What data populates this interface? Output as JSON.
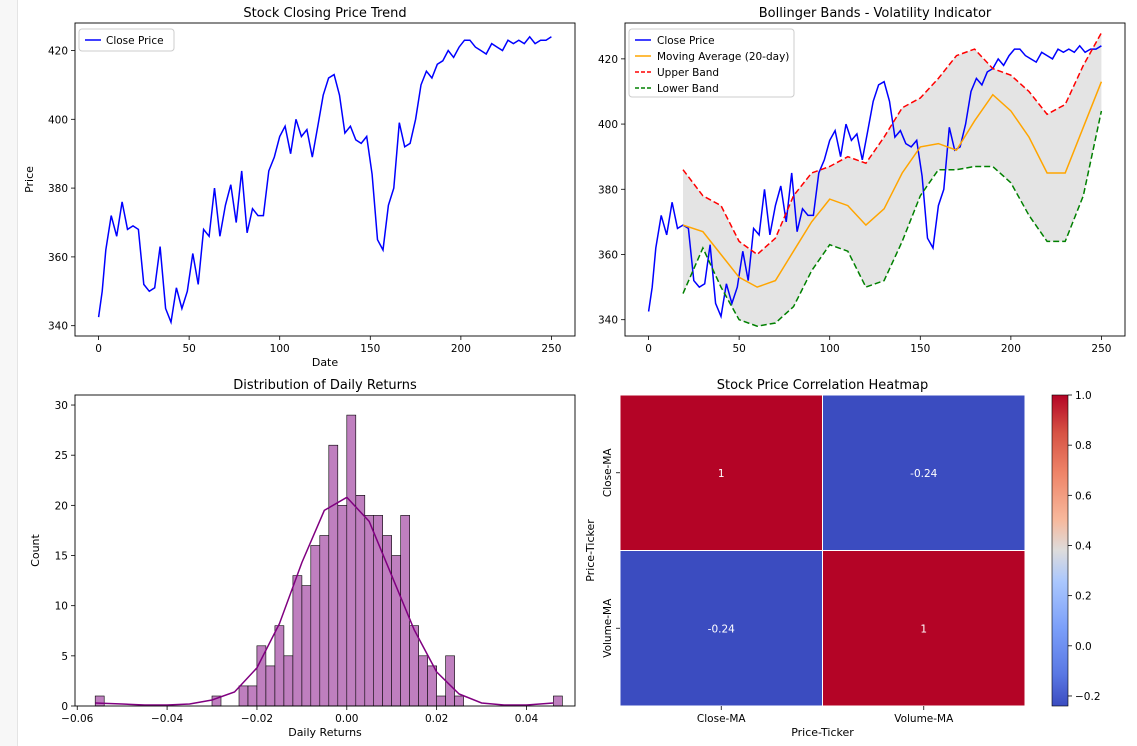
{
  "chart_data": [
    {
      "type": "line",
      "title": "Stock Closing Price Trend",
      "xlabel": "Date",
      "ylabel": "Price",
      "xlim": [
        -13,
        263
      ],
      "ylim": [
        337,
        428
      ],
      "xticks": [
        0,
        50,
        100,
        150,
        200,
        250
      ],
      "yticks": [
        340,
        360,
        380,
        400,
        420
      ],
      "grid": false,
      "legend_position": "upper left",
      "colors": {
        "close": "#0000ff"
      },
      "series": [
        {
          "name": "Close Price",
          "x": [
            0,
            2,
            4,
            7,
            10,
            13,
            16,
            19,
            22,
            25,
            28,
            31,
            34,
            37,
            40,
            43,
            46,
            49,
            52,
            55,
            58,
            61,
            64,
            67,
            70,
            73,
            76,
            79,
            82,
            85,
            88,
            91,
            94,
            97,
            100,
            103,
            106,
            109,
            112,
            115,
            118,
            121,
            124,
            127,
            130,
            133,
            136,
            139,
            142,
            145,
            148,
            151,
            154,
            157,
            160,
            163,
            166,
            169,
            172,
            175,
            178,
            181,
            184,
            187,
            190,
            193,
            196,
            199,
            202,
            205,
            208,
            211,
            214,
            217,
            220,
            223,
            226,
            229,
            232,
            235,
            238,
            241,
            244,
            247,
            250
          ],
          "values": [
            342.5,
            350,
            362,
            372,
            366,
            376,
            368,
            369,
            368,
            352,
            350,
            351,
            363,
            345,
            341,
            351,
            345,
            350,
            361,
            352,
            368,
            366,
            380,
            366,
            375,
            381,
            370,
            385,
            367,
            374,
            372,
            372,
            385,
            389,
            395,
            398,
            390,
            400,
            395,
            397,
            389,
            398,
            407,
            412,
            413,
            407,
            396,
            398,
            394,
            393,
            395,
            384,
            365,
            362,
            375,
            380,
            399,
            392,
            393,
            400,
            410,
            414,
            412,
            416,
            417,
            420,
            418,
            421,
            423,
            423,
            421,
            420,
            419,
            422,
            421,
            420,
            423,
            422,
            423,
            422,
            424,
            422,
            423,
            423,
            424
          ]
        }
      ]
    },
    {
      "type": "line",
      "title": "Bollinger Bands - Volatility Indicator",
      "xlabel": "",
      "ylabel": "",
      "xlim": [
        -13,
        263
      ],
      "ylim": [
        335,
        431
      ],
      "xticks": [
        0,
        50,
        100,
        150,
        200,
        250
      ],
      "yticks": [
        340,
        360,
        380,
        400,
        420
      ],
      "grid": false,
      "legend_position": "upper left",
      "fill_between": {
        "between": [
          "Upper Band",
          "Lower Band"
        ],
        "color": "#e4e4e4"
      },
      "series": [
        {
          "name": "Close Price",
          "color": "#0000ff",
          "style": "solid",
          "x": [
            0,
            2,
            4,
            7,
            10,
            13,
            16,
            19,
            22,
            25,
            28,
            31,
            34,
            37,
            40,
            43,
            46,
            49,
            52,
            55,
            58,
            61,
            64,
            67,
            70,
            73,
            76,
            79,
            82,
            85,
            88,
            91,
            94,
            97,
            100,
            103,
            106,
            109,
            112,
            115,
            118,
            121,
            124,
            127,
            130,
            133,
            136,
            139,
            142,
            145,
            148,
            151,
            154,
            157,
            160,
            163,
            166,
            169,
            172,
            175,
            178,
            181,
            184,
            187,
            190,
            193,
            196,
            199,
            202,
            205,
            208,
            211,
            214,
            217,
            220,
            223,
            226,
            229,
            232,
            235,
            238,
            241,
            244,
            247,
            250
          ],
          "values": [
            342.5,
            350,
            362,
            372,
            366,
            376,
            368,
            369,
            368,
            352,
            350,
            351,
            363,
            345,
            341,
            351,
            345,
            350,
            361,
            352,
            368,
            366,
            380,
            366,
            375,
            381,
            370,
            385,
            367,
            374,
            372,
            372,
            385,
            389,
            395,
            398,
            390,
            400,
            395,
            397,
            389,
            398,
            407,
            412,
            413,
            407,
            396,
            398,
            394,
            393,
            395,
            384,
            365,
            362,
            375,
            380,
            399,
            392,
            393,
            400,
            410,
            414,
            412,
            416,
            417,
            420,
            418,
            421,
            423,
            423,
            421,
            420,
            419,
            422,
            421,
            420,
            423,
            422,
            423,
            422,
            424,
            422,
            423,
            423,
            424
          ]
        },
        {
          "name": "Moving Average (20-day)",
          "color": "#ffa500",
          "style": "solid",
          "x": [
            19,
            30,
            40,
            50,
            60,
            70,
            80,
            90,
            100,
            110,
            120,
            130,
            140,
            150,
            160,
            170,
            180,
            190,
            200,
            210,
            220,
            230,
            240,
            250
          ],
          "values": [
            369,
            367,
            360,
            353,
            350,
            352,
            361,
            370,
            377,
            375,
            369,
            374,
            385,
            393,
            394,
            392,
            401,
            409,
            404,
            396,
            385,
            385,
            399,
            413
          ]
        },
        {
          "name": "Upper Band",
          "color": "#ff0000",
          "style": "dashed",
          "x": [
            19,
            30,
            40,
            50,
            60,
            70,
            80,
            90,
            100,
            110,
            120,
            130,
            140,
            150,
            160,
            170,
            180,
            190,
            200,
            210,
            220,
            230,
            240,
            250
          ],
          "values": [
            386,
            378,
            375,
            364,
            360,
            365,
            378,
            385,
            387,
            390,
            388,
            396,
            405,
            408,
            414,
            421,
            423,
            417,
            415,
            410,
            403,
            406,
            418,
            428
          ]
        },
        {
          "name": "Lower Band",
          "color": "#008000",
          "style": "dashed",
          "x": [
            19,
            30,
            40,
            50,
            60,
            70,
            80,
            90,
            100,
            110,
            120,
            130,
            140,
            150,
            160,
            170,
            180,
            190,
            200,
            210,
            220,
            230,
            240,
            250
          ],
          "values": [
            348,
            362,
            350,
            340,
            338,
            339,
            344,
            355,
            363,
            361,
            350,
            352,
            364,
            378,
            386,
            386,
            387,
            387,
            382,
            372,
            364,
            364,
            378,
            404
          ]
        }
      ]
    },
    {
      "type": "bar",
      "title": "Distribution of Daily Returns",
      "xlabel": "Daily Returns",
      "ylabel": "Count",
      "xlim": [
        -0.0605,
        0.0508
      ],
      "ylim": [
        0,
        31
      ],
      "xticks": [
        -0.06,
        -0.04,
        -0.02,
        0.0,
        0.02,
        0.04
      ],
      "xtick_labels": [
        "−0.06",
        "−0.04",
        "−0.02",
        "0.00",
        "0.02",
        "0.04"
      ],
      "yticks": [
        0,
        5,
        10,
        15,
        20,
        25,
        30
      ],
      "grid": false,
      "colors": {
        "bar_fill": "#bf7fbf",
        "bar_edge": "#000000",
        "kde": "#800080"
      },
      "bin_width": 0.002,
      "bin_starts": [
        -0.056,
        -0.03,
        -0.024,
        -0.022,
        -0.02,
        -0.018,
        -0.016,
        -0.014,
        -0.012,
        -0.01,
        -0.008,
        -0.006,
        -0.004,
        -0.002,
        0.0,
        0.002,
        0.004,
        0.006,
        0.008,
        0.01,
        0.012,
        0.014,
        0.016,
        0.018,
        0.02,
        0.022,
        0.024,
        0.046
      ],
      "counts": [
        1,
        1,
        2,
        2,
        6,
        4,
        8,
        5,
        13,
        12,
        16,
        17,
        26,
        20,
        29,
        21,
        19,
        19,
        17,
        15,
        19,
        8,
        5,
        4,
        1,
        5,
        1,
        1
      ],
      "kde": {
        "x": [
          -0.056,
          -0.05,
          -0.045,
          -0.04,
          -0.035,
          -0.03,
          -0.025,
          -0.02,
          -0.015,
          -0.01,
          -0.005,
          0.0,
          0.005,
          0.01,
          0.015,
          0.02,
          0.025,
          0.03,
          0.035,
          0.04,
          0.046
        ],
        "values": [
          0.3,
          0.2,
          0.1,
          0.1,
          0.2,
          0.6,
          1.4,
          3.8,
          8.2,
          14.3,
          19.5,
          20.8,
          18.4,
          13.0,
          7.6,
          3.4,
          1.2,
          0.3,
          0.1,
          0.1,
          0.3
        ]
      }
    },
    {
      "type": "heatmap",
      "title": "Stock Price Correlation Heatmap",
      "xlabel": "Price-Ticker",
      "ylabel": "Price-Ticker",
      "x_categories": [
        "Close-MA",
        "Volume-MA"
      ],
      "y_categories": [
        "Close-MA",
        "Volume-MA"
      ],
      "values": [
        [
          1,
          -0.24
        ],
        [
          -0.24,
          1
        ]
      ],
      "cell_labels": [
        [
          "1",
          "-0.24"
        ],
        [
          "-0.24",
          "1"
        ]
      ],
      "colormap": "coolwarm",
      "colors": {
        "high": "#b40426",
        "low": "#3b4cc0"
      },
      "colorbar": {
        "range": [
          -0.24,
          1.0
        ],
        "ticks": [
          -0.2,
          0.0,
          0.2,
          0.4,
          0.6,
          0.8,
          1.0
        ],
        "tick_labels": [
          "−0.2",
          "0.0",
          "0.2",
          "0.4",
          "0.6",
          "0.8",
          "1.0"
        ]
      }
    }
  ]
}
